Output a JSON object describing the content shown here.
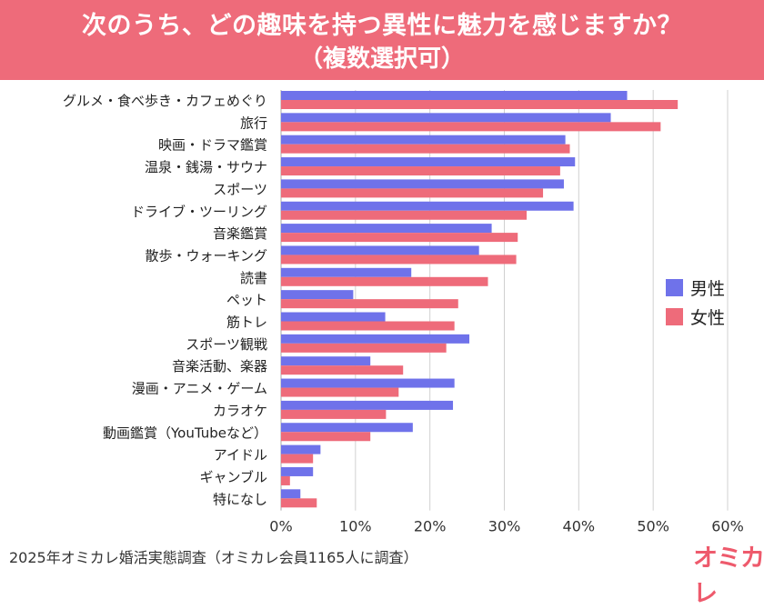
{
  "title_line1": "次のうち、どの趣味を持つ異性に魅力を感じますか？",
  "title_line2": "（複数選択可）",
  "footer_note": "2025年オミカレ婚活実態調査（オミカレ会員1165人に調査）",
  "brand": "オミカレ",
  "colors": {
    "male": "#6f72ea",
    "female": "#ee6b7a",
    "header": "#ee6b7a"
  },
  "chart_data": {
    "type": "bar",
    "orientation": "horizontal",
    "title": "次のうち、どの趣味を持つ異性に魅力を感じますか？（複数選択可）",
    "categories": [
      "グルメ・食べ歩き・カフェめぐり",
      "旅行",
      "映画・ドラマ鑑賞",
      "温泉・銭湯・サウナ",
      "スポーツ",
      "ドライブ・ツーリング",
      "音楽鑑賞",
      "散歩・ウォーキング",
      "読書",
      "ペット",
      "筋トレ",
      "スポーツ観戦",
      "音楽活動、楽器",
      "漫画・アニメ・ゲーム",
      "カラオケ",
      "動画鑑賞（YouTubeなど）",
      "アイドル",
      "ギャンブル",
      "特になし"
    ],
    "series": [
      {
        "name": "男性",
        "values": [
          46.5,
          44.3,
          38.2,
          39.5,
          38.0,
          39.3,
          28.3,
          26.6,
          17.5,
          9.7,
          14.0,
          25.3,
          12.0,
          23.3,
          23.1,
          17.7,
          5.3,
          4.3,
          2.6
        ]
      },
      {
        "name": "女性",
        "values": [
          53.3,
          51.0,
          38.8,
          37.5,
          35.2,
          33.0,
          31.8,
          31.6,
          27.8,
          23.8,
          23.3,
          22.2,
          16.4,
          15.8,
          14.1,
          12.0,
          4.3,
          1.2,
          4.8
        ]
      }
    ],
    "xlim": [
      0,
      60
    ],
    "ticks": [
      0,
      10,
      20,
      30,
      40,
      50,
      60
    ],
    "tick_labels": [
      "0%",
      "10%",
      "20%",
      "30%",
      "40%",
      "50%",
      "60%"
    ],
    "grid": true,
    "legend_position": "right"
  }
}
